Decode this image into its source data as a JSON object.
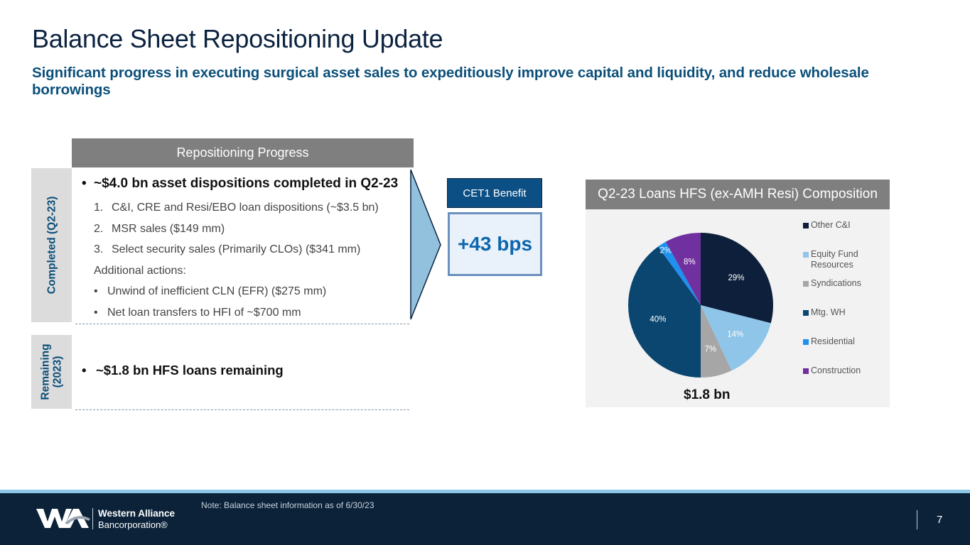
{
  "slide": {
    "title": "Balance Sheet Repositioning Update",
    "subtitle": "Significant progress in executing surgical asset sales to expeditiously improve capital and liquidity, and reduce wholesale borrowings"
  },
  "progress": {
    "header": "Repositioning Progress",
    "completed_tab": "Completed (Q2-23)",
    "remaining_tab_line1": "Remaining",
    "remaining_tab_line2": "(2023)",
    "bullet_glyph": "•",
    "main_bullet": "~$4.0 bn asset dispositions completed in Q2-23",
    "numbered_items": [
      {
        "num": "1.",
        "text": "C&I, CRE and Resi/EBO loan dispositions (~$3.5 bn)"
      },
      {
        "num": "2.",
        "text": "MSR sales ($149 mm)"
      },
      {
        "num": "3.",
        "text": "Select security sales (Primarily CLOs) ($341 mm)"
      }
    ],
    "additional_label": "Additional actions:",
    "additional_items": [
      "Unwind of inefficient CLN (EFR) ($275 mm)",
      "Net loan transfers to HFI of ~$700 mm"
    ],
    "remaining_bullet": "~$1.8 bn HFS loans remaining"
  },
  "cet1": {
    "header": "CET1 Benefit",
    "value": "+43 bps"
  },
  "chart_data": {
    "type": "pie",
    "title": "Q2-23 Loans HFS (ex-AMH Resi) Composition",
    "total_label": "$1.8 bn",
    "legend_position": "right",
    "categories": [
      "Other C&I",
      "Equity Fund Resources",
      "Syndications",
      "Mtg. WH",
      "Residential",
      "Construction"
    ],
    "values": [
      29,
      14,
      7,
      40,
      2,
      8
    ],
    "labels": [
      "29%",
      "14%",
      "7%",
      "40%",
      "2%",
      "8%"
    ],
    "colors": [
      "#0d1f3a",
      "#8ec5e8",
      "#a6a6a6",
      "#0b4670",
      "#1e90f0",
      "#7030a0"
    ]
  },
  "footer": {
    "note": "Note: Balance sheet information as of 6/30/23",
    "company_name": "Western Alliance",
    "company_sub": "Bancorporation®",
    "page_number": "7"
  },
  "colors": {
    "title": "#0c2340",
    "accent": "#0b4f7a",
    "footer_bg": "#0b2239",
    "stripe": "#8ec6e6"
  }
}
